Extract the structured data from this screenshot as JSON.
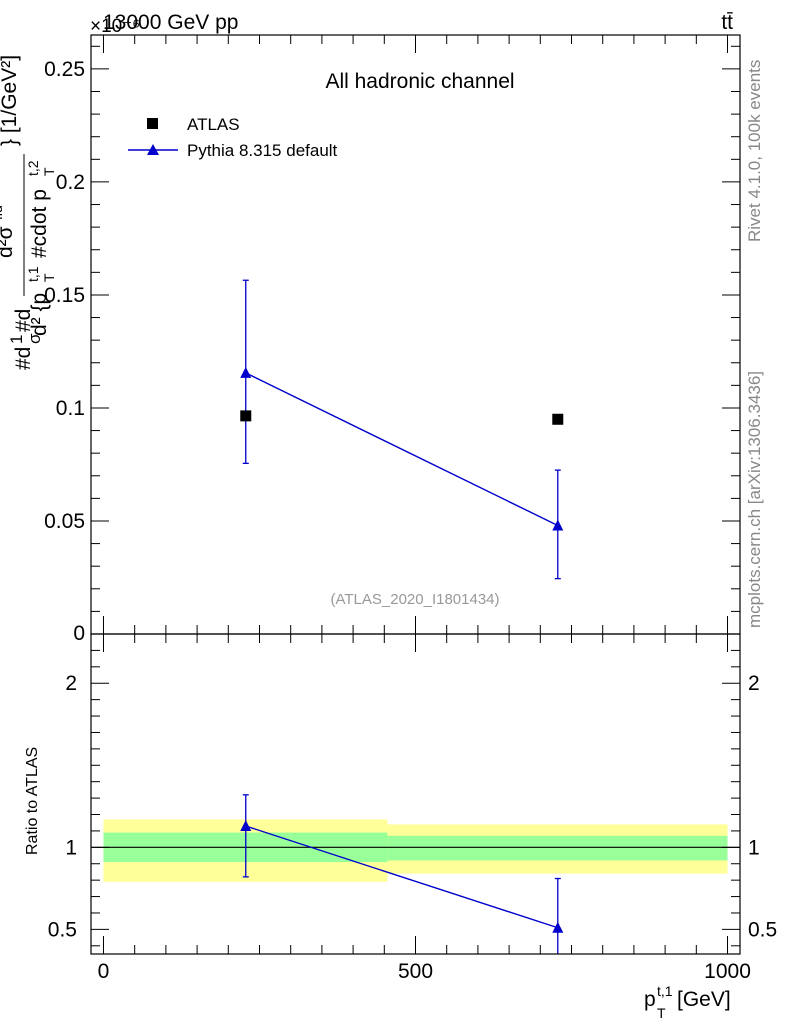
{
  "header": {
    "collision": "13000 GeV pp",
    "process": "tt̄",
    "exponent": "×10⁻⁶"
  },
  "side_labels": {
    "rivet": "Rivet 4.1.0,  100k events",
    "mcplots": "mcplots.cern.ch [arXiv:1306.3436]"
  },
  "chart_data": [
    {
      "type": "scatter",
      "title": "All hadronic channel",
      "analysis_label": "(ATLAS_2020_I1801434)",
      "ylabel": "#d\\frac{1}{\\sigma}#d\\frac{d^2\\sigma^{\\rm fid}}{d^2 {p_T^{t,1} #cdot p_T^{t,2}}} [1/GeV^2]",
      "ylabel_display": {
        "part1": "#d",
        "part2": "1",
        "part3": "σ",
        "part4": "#d",
        "num": "d²σ",
        "num_sup": "fid",
        "den": "d² {p",
        "den2": "t,1",
        "den3": "T",
        "den4": "#cdot p",
        "den5": "t,2",
        "den6": "T",
        "unit": "} [1/GeV²]"
      },
      "xlim": [
        -20,
        1020
      ],
      "ylim": [
        0,
        0.265
      ],
      "y_exponent": "×10⁻⁶",
      "yticks": [
        0.05,
        0.1,
        0.15,
        0.2,
        0.25
      ],
      "ytick_labels": [
        "0.05",
        "0.1",
        "0.15",
        "0.2",
        "0.25"
      ],
      "ytick_zero_label": "0",
      "legend": [
        {
          "name": "ATLAS",
          "marker": "square",
          "color": "#000000"
        },
        {
          "name": "Pythia 8.315 default",
          "marker": "triangle",
          "color": "#0000cc"
        }
      ],
      "series": [
        {
          "name": "ATLAS",
          "x": [
            228,
            728
          ],
          "y": [
            0.0965,
            0.095
          ]
        },
        {
          "name": "Pythia 8.315 default",
          "x": [
            228,
            728
          ],
          "y": [
            0.1155,
            0.048
          ],
          "yerr_low": [
            0.0755,
            0.0245
          ],
          "yerr_high": [
            0.1565,
            0.0725
          ]
        }
      ]
    },
    {
      "type": "scatter",
      "ylabel": "Ratio to ATLAS",
      "xlabel": "p_T^{t,1} [GeV]",
      "xlabel_display": {
        "base": "p",
        "sup": "t,1",
        "sub": "T",
        "unit": " [GeV]"
      },
      "xlim": [
        -20,
        1020
      ],
      "ylim": [
        0.35,
        2.3
      ],
      "xticks": [
        0,
        500,
        1000
      ],
      "xtick_labels": [
        "0",
        "500",
        "1000"
      ],
      "yticks": [
        0.5,
        1,
        2
      ],
      "ytick_labels": [
        "0.5",
        "1",
        "2"
      ],
      "bands": [
        {
          "x_range": [
            0,
            455
          ],
          "yellow": [
            0.79,
            1.17
          ],
          "green": [
            0.91,
            1.09
          ]
        },
        {
          "x_range": [
            455,
            1000
          ],
          "yellow": [
            0.84,
            1.14
          ],
          "green": [
            0.92,
            1.07
          ]
        }
      ],
      "reference_line": 1,
      "series": [
        {
          "name": "Pythia 8.315 default",
          "x": [
            228,
            728
          ],
          "y": [
            1.13,
            0.51
          ],
          "yerr_low": [
            0.82,
            0.3
          ],
          "yerr_high": [
            1.32,
            0.81
          ]
        }
      ]
    }
  ],
  "colors": {
    "atlas": "#000000",
    "pythia": "#0000cc",
    "band_yellow": "#ffff99",
    "band_green": "#99ff99",
    "side_text": "#888888",
    "label_text": "#999999"
  }
}
